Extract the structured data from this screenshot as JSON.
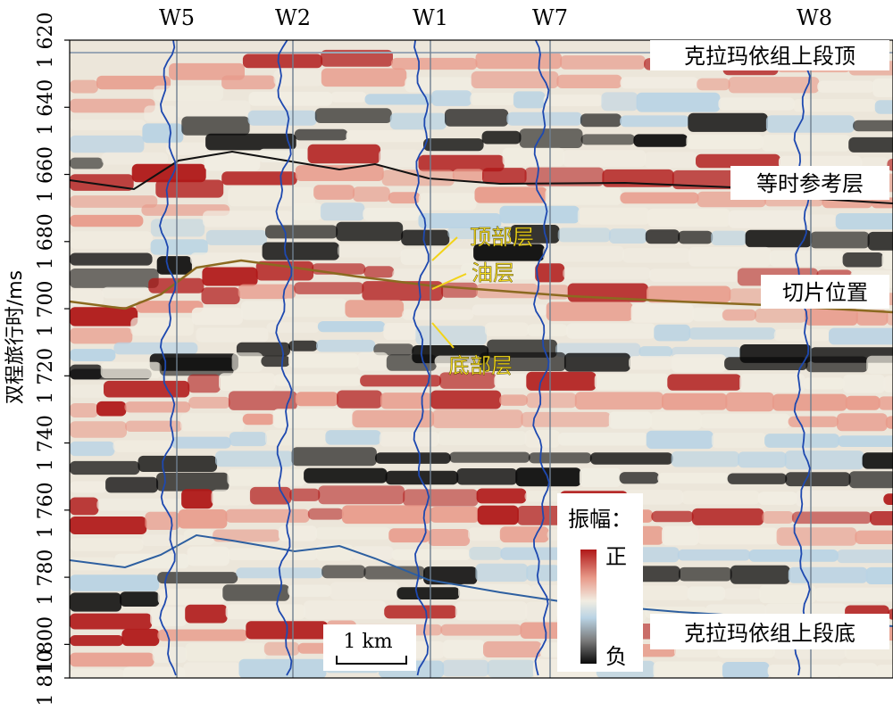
{
  "yaxis": {
    "label": "双程旅行时/ms",
    "range": [
      1620,
      1810
    ],
    "ticks": [
      "1 620",
      "1 640",
      "1 660",
      "1 680",
      "1 700",
      "1 720",
      "1 740",
      "1 760",
      "1 780",
      "1 800",
      "1 810"
    ],
    "tick_values": [
      1620,
      1640,
      1660,
      1680,
      1700,
      1720,
      1740,
      1760,
      1780,
      1800,
      1810
    ]
  },
  "wells": [
    {
      "name": "W5"
    },
    {
      "name": "W2"
    },
    {
      "name": "W1"
    },
    {
      "name": "W7"
    },
    {
      "name": "W8"
    }
  ],
  "horizons": {
    "top_label": "克拉玛依组上段顶",
    "ref_label": "等时参考层",
    "slice_label": "切片位置",
    "bottom_label": "克拉玛依组上段底"
  },
  "layers": {
    "top": "顶部层",
    "oil": "油层",
    "bottom": "底部层"
  },
  "legend": {
    "title": "振幅：",
    "pos": "正",
    "neg": "负",
    "colors": [
      "#b01818",
      "#e89a8a",
      "#f1ede2",
      "#b9d3e4",
      "#7a7a7a",
      "#0a0a0a"
    ]
  },
  "scale_bar": {
    "label": "1 km"
  }
}
